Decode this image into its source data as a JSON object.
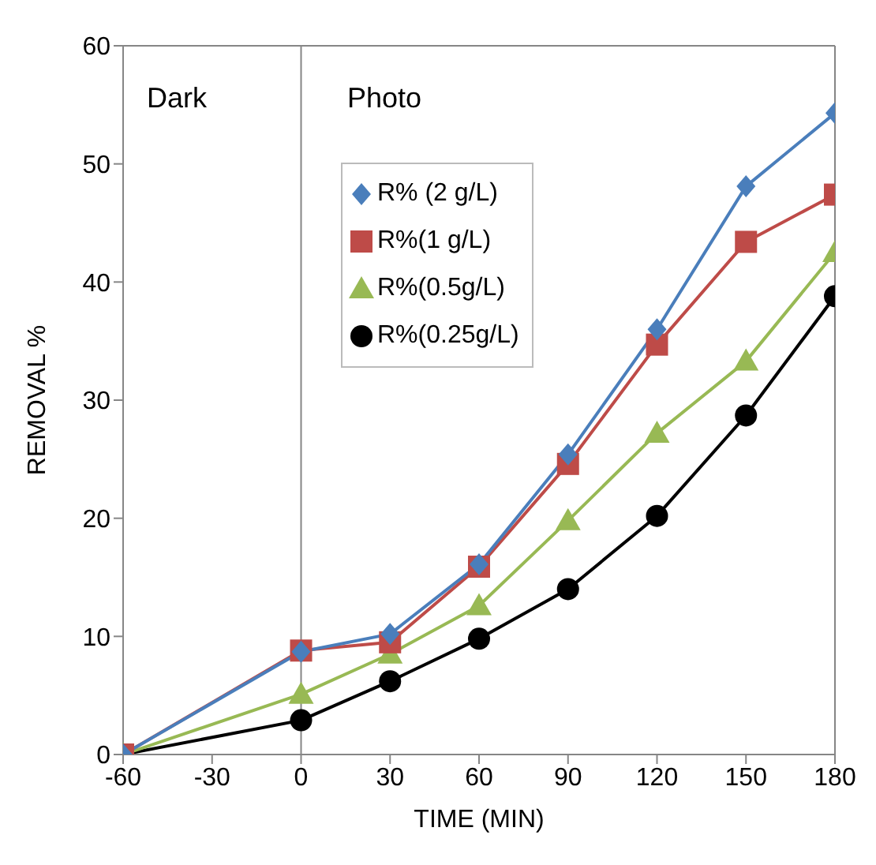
{
  "chart_data": {
    "type": "line",
    "xlabel": "TIME (MIN)",
    "ylabel": "REMOVAL %",
    "x": [
      -60,
      0,
      30,
      60,
      90,
      120,
      150,
      180
    ],
    "series": [
      {
        "name": "R% (2 g/L)",
        "color": "#4a7ebb",
        "marker": "diamond",
        "values": [
          0,
          8.7,
          10.2,
          16.1,
          25.4,
          36,
          48.1,
          54.3
        ]
      },
      {
        "name": "R%(1 g/L)",
        "color": "#be4b48",
        "marker": "square",
        "values": [
          0,
          8.8,
          9.5,
          15.9,
          24.6,
          34.7,
          43.4,
          47.4
        ]
      },
      {
        "name": "R%(0.5g/L)",
        "color": "#98b954",
        "marker": "triangle",
        "values": [
          0,
          5.1,
          8.5,
          12.6,
          19.8,
          27.2,
          33.3,
          42.5
        ]
      },
      {
        "name": "R%(0.25g/L)",
        "color": "#000000",
        "marker": "circle",
        "values": [
          0,
          2.9,
          6.2,
          9.8,
          14.0,
          20.2,
          28.7,
          38.8
        ]
      }
    ],
    "xlim": [
      -60,
      180
    ],
    "xticks": [
      -60,
      -30,
      0,
      30,
      60,
      90,
      120,
      150,
      180
    ],
    "ylim": [
      0,
      60
    ],
    "yticks": [
      0,
      10,
      20,
      30,
      40,
      50,
      60
    ],
    "ref_lines": [
      {
        "axis": "x",
        "value": 0,
        "color": "#868686"
      }
    ],
    "annotations": [
      "Dark",
      "Photo"
    ],
    "grid": false,
    "legend": "top left",
    "line_style": "solid"
  }
}
